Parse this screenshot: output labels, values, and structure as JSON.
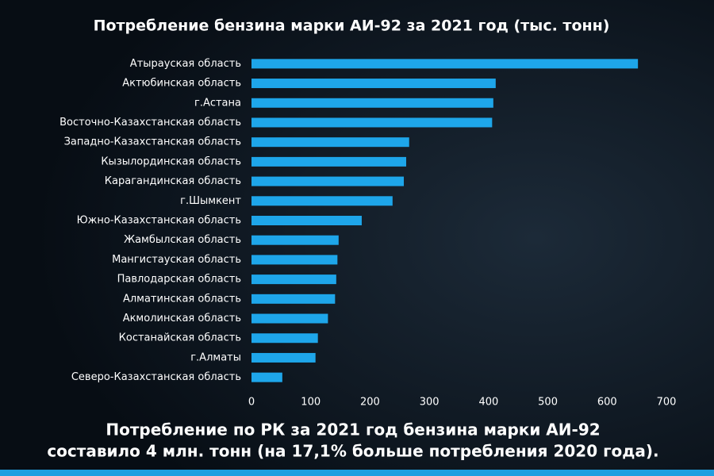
{
  "chart_data": {
    "type": "hbar",
    "title": "Потребление бензина марки АИ-92 за 2021 год (тыс. тонн)",
    "categories": [
      "Атырауская область",
      "Актюбинская область",
      "г.Астана",
      "Восточно-Казахстанская область",
      "Западно-Казахстанская область",
      "Кызылординская область",
      "Карагандинская область",
      "г.Шымкент",
      "Южно-Казахстанская область",
      "Жамбылская область",
      "Мангистауская область",
      "Павлодарская область",
      "Алматинская область",
      "Акмолинская область",
      "Костанайская область",
      "г.Алматы",
      "Северо-Казахстанская область"
    ],
    "values": [
      652,
      412,
      408,
      406,
      266,
      261,
      257,
      238,
      186,
      147,
      145,
      143,
      141,
      129,
      112,
      108,
      52
    ],
    "color": "#1ea6ea",
    "xlim": [
      0,
      700
    ],
    "xticks": [
      0,
      100,
      200,
      300,
      400,
      500,
      600,
      700
    ],
    "notes": [
      "Потребление по РК за 2021 год бензина марки АИ-92",
      "составило 4 млн. тонн (на 17,1% больше потребления 2020 года)."
    ]
  }
}
